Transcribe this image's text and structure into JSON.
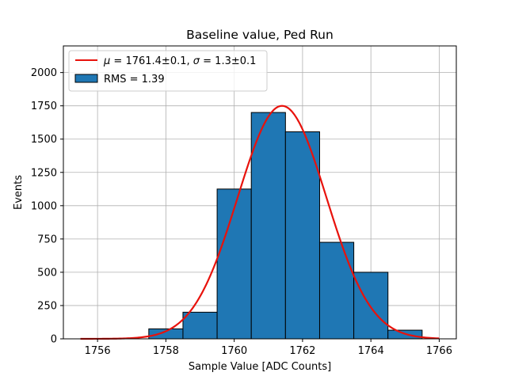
{
  "chart_data": {
    "type": "bar",
    "title": "Baseline value, Ped Run",
    "xlabel": "Sample Value [ADC Counts]",
    "ylabel": "Events",
    "xlim": [
      1755.0,
      1766.5
    ],
    "ylim": [
      0,
      2200
    ],
    "xticks": [
      1756,
      1758,
      1760,
      1762,
      1764,
      1766
    ],
    "yticks": [
      0,
      250,
      500,
      750,
      1000,
      1250,
      1500,
      1750,
      2000
    ],
    "grid": true,
    "legend_position": "top-left",
    "histogram": {
      "bin_edges": [
        1757.5,
        1758.5,
        1759.5,
        1760.5,
        1761.5,
        1762.5,
        1763.5,
        1764.5,
        1765.5
      ],
      "counts": [
        75,
        200,
        1125,
        1700,
        1555,
        725,
        500,
        65
      ],
      "color": "#1f77b4",
      "edgecolor": "#000000",
      "legend_label": "RMS = 1.39"
    },
    "fit": {
      "function": "gaussian",
      "mu": 1761.4,
      "sigma": 1.3,
      "amplitude": 1750,
      "x_range": [
        1755.5,
        1766.0
      ],
      "color": "#e8120c",
      "legend_label_parts": [
        "μ",
        " = 1761.4±0.1, ",
        "σ",
        " = 1.3±0.1"
      ]
    }
  }
}
